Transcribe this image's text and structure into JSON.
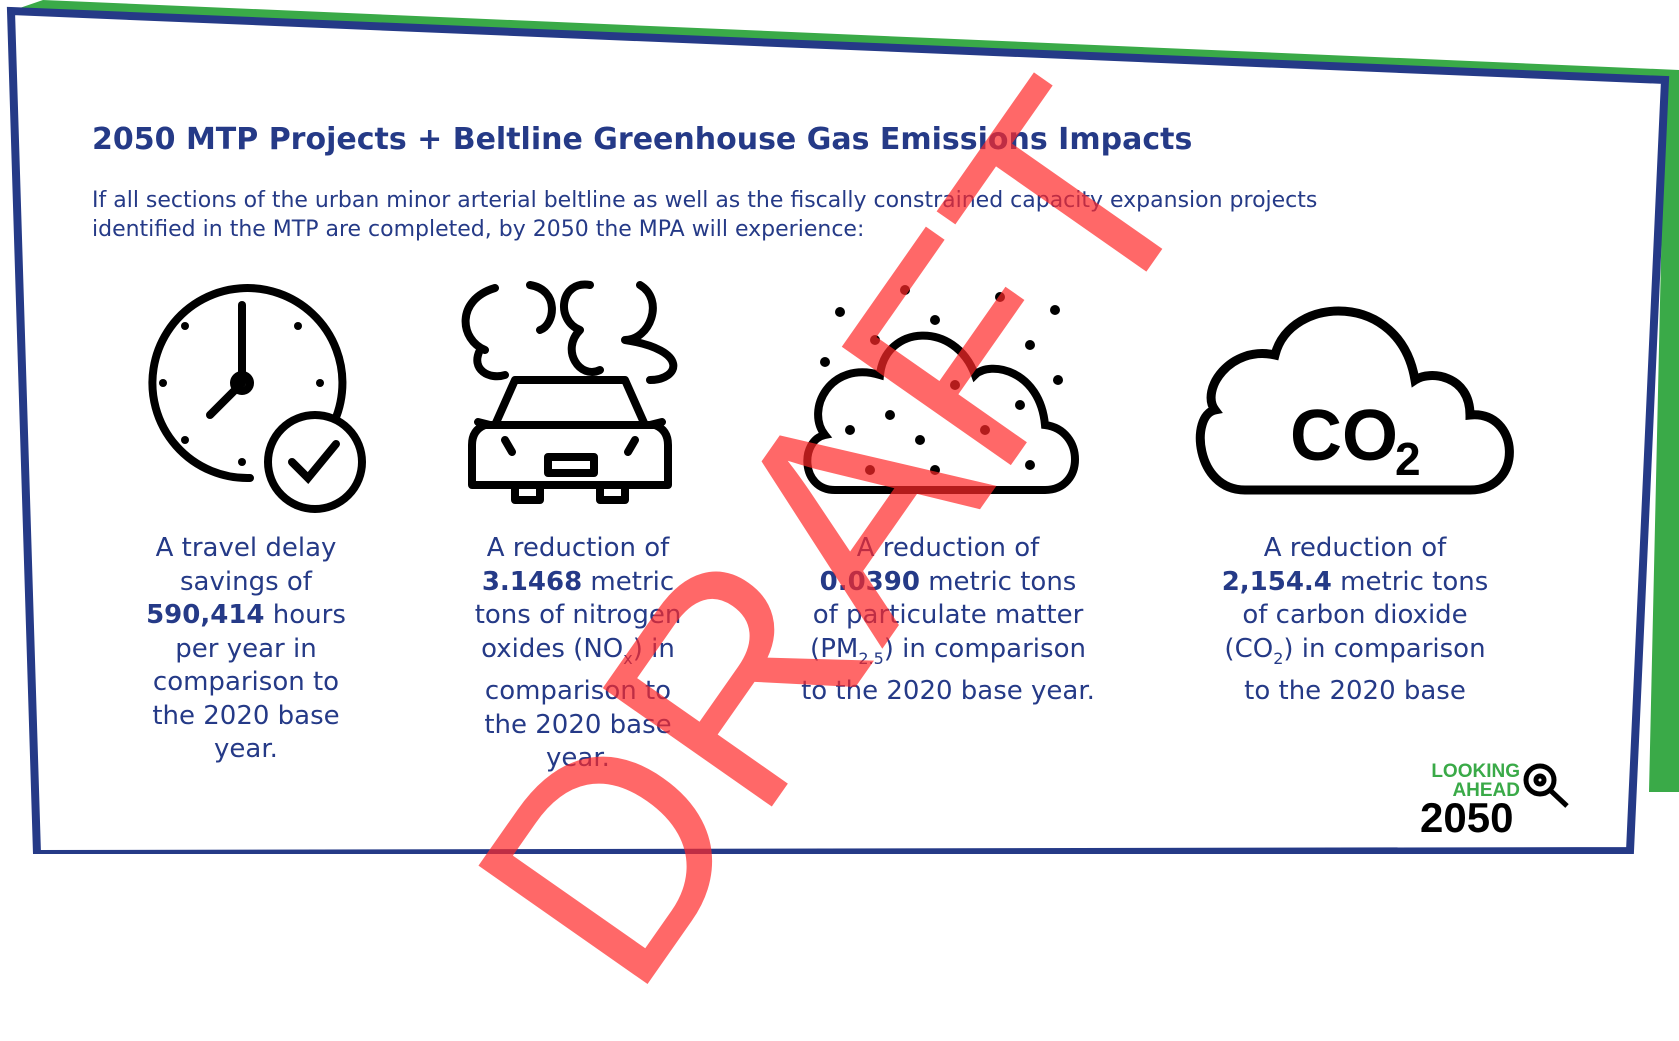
{
  "header": {
    "title": "2050 MTP Projects + Beltline Greenhouse Gas Emissions Impacts",
    "intro": [
      "If all sections of the urban minor arterial beltline as well as the fiscally constrained capacity expansion projects",
      "identified in the MTP are completed, by 2050 the MPA will experience:"
    ]
  },
  "items": [
    {
      "lines": [
        [
          {
            "text": "A travel delay"
          }
        ],
        [
          {
            "text": "savings of"
          }
        ],
        [
          {
            "text": "590,414",
            "style": "bold"
          },
          {
            "text": " hours"
          }
        ],
        [
          {
            "text": "per year in"
          }
        ],
        [
          {
            "text": "comparison to"
          }
        ],
        [
          {
            "text": "the 2020 base"
          }
        ],
        [
          {
            "text": "year."
          }
        ]
      ]
    },
    {
      "lines": [
        [
          {
            "text": "A reduction of"
          }
        ],
        [
          {
            "text": "3.1468",
            "style": "bold"
          },
          {
            "text": " metric"
          }
        ],
        [
          {
            "text": "tons of nitrogen"
          }
        ],
        [
          {
            "text": "oxides (NO"
          },
          {
            "text": "x",
            "style": "sub"
          },
          {
            "text": ") in"
          }
        ],
        [
          {
            "text": "comparison to"
          }
        ],
        [
          {
            "text": "the 2020 base"
          }
        ],
        [
          {
            "text": "year."
          }
        ]
      ]
    },
    {
      "lines": [
        [
          {
            "text": "A reduction of"
          }
        ],
        [
          {
            "text": "0.0390",
            "style": "bold"
          },
          {
            "text": " metric tons"
          }
        ],
        [
          {
            "text": "of particulate matter"
          }
        ],
        [
          {
            "text": "(PM"
          },
          {
            "text": "2.5",
            "style": "sub"
          },
          {
            "text": ") in comparison"
          }
        ],
        [
          {
            "text": "to the 2020 base year."
          }
        ]
      ]
    },
    {
      "lines": [
        [
          {
            "text": "A reduction of"
          }
        ],
        [
          {
            "text": "2,154.4",
            "style": "bold"
          },
          {
            "text": " metric tons"
          }
        ],
        [
          {
            "text": "of carbon dioxide"
          }
        ],
        [
          {
            "text": "(CO"
          },
          {
            "text": "2",
            "style": "sub"
          },
          {
            "text": ") in comparison"
          }
        ],
        [
          {
            "text": "to the 2020 base"
          }
        ]
      ]
    }
  ],
  "co2_icon": {
    "main": "CO",
    "sub": "2"
  },
  "logo": {
    "line1": "LOOKING",
    "line2": "AHEAD",
    "year": "2050"
  },
  "watermark": "DRAFT"
}
